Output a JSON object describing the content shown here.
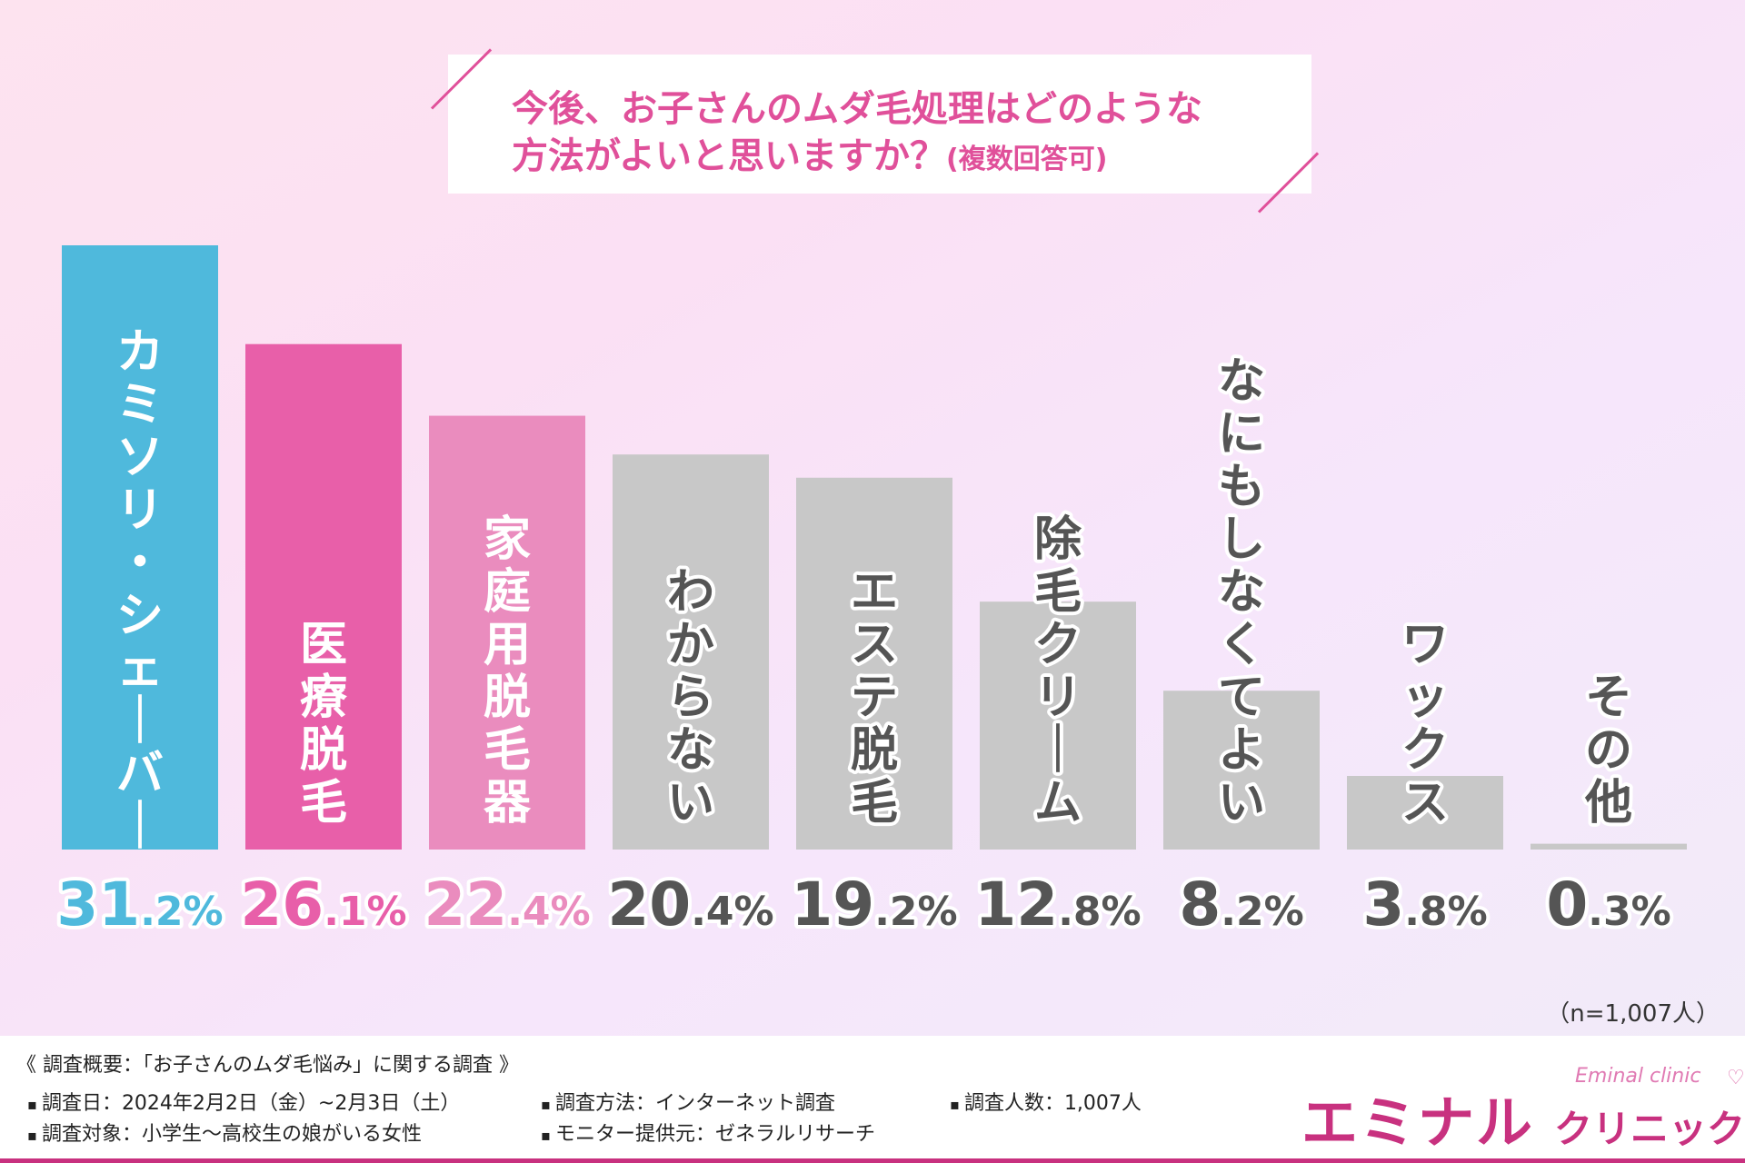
{
  "title_line1": "今後、お子さんのムダ毛処理はどのような",
  "title_line2": "方法がよいと思いますか？",
  "title_suffix": "(複数回答可)",
  "sample_note": "（n=1,007人）",
  "chart_data": {
    "type": "bar",
    "title": "今後、お子さんのムダ毛処理はどのような方法がよいと思いますか？(複数回答可)",
    "categories": [
      "カミソリ・シェーバー",
      "医療脱毛",
      "家庭用脱毛器",
      "わからない",
      "エステ脱毛",
      "除毛クリーム",
      "なにもしなくてよい",
      "ワックス",
      "その他"
    ],
    "values": [
      31.2,
      26.1,
      22.4,
      20.4,
      19.2,
      12.8,
      8.2,
      3.8,
      0.3
    ],
    "value_labels": [
      "31.2%",
      "26.1%",
      "22.4%",
      "20.4%",
      "19.2%",
      "12.8%",
      "8.2%",
      "3.8%",
      "0.3%"
    ],
    "colors": [
      "#4fb9dc",
      "#e85fa9",
      "#ea8cbe",
      "#c8c8c8",
      "#c8c8c8",
      "#c8c8c8",
      "#c8c8c8",
      "#c8c8c8",
      "#c8c8c8"
    ],
    "label_colors": [
      "#4fb9dc",
      "#e85fa9",
      "#ea8cbe",
      "#555555",
      "#555555",
      "#555555",
      "#555555",
      "#555555",
      "#555555"
    ],
    "ylim": [
      0,
      31.2
    ]
  },
  "footer": {
    "overview": "《 調査概要：「お子さんのムダ毛悩み」に関する調査 》",
    "date": "調査日：2024年2月2日（金）~2月3日（土）",
    "method": "調査方法：インターネット調査",
    "count": "調査人数：1,007人",
    "target": "調査対象：小学生～高校生の娘がいる女性",
    "provider": "モニター提供元：ゼネラルリサーチ"
  },
  "logo": {
    "main": "エミナル",
    "sub": "クリニック",
    "en": "Eminal clinic"
  },
  "colors": {
    "accent": "#e0509a",
    "brand": "#c8317f"
  }
}
